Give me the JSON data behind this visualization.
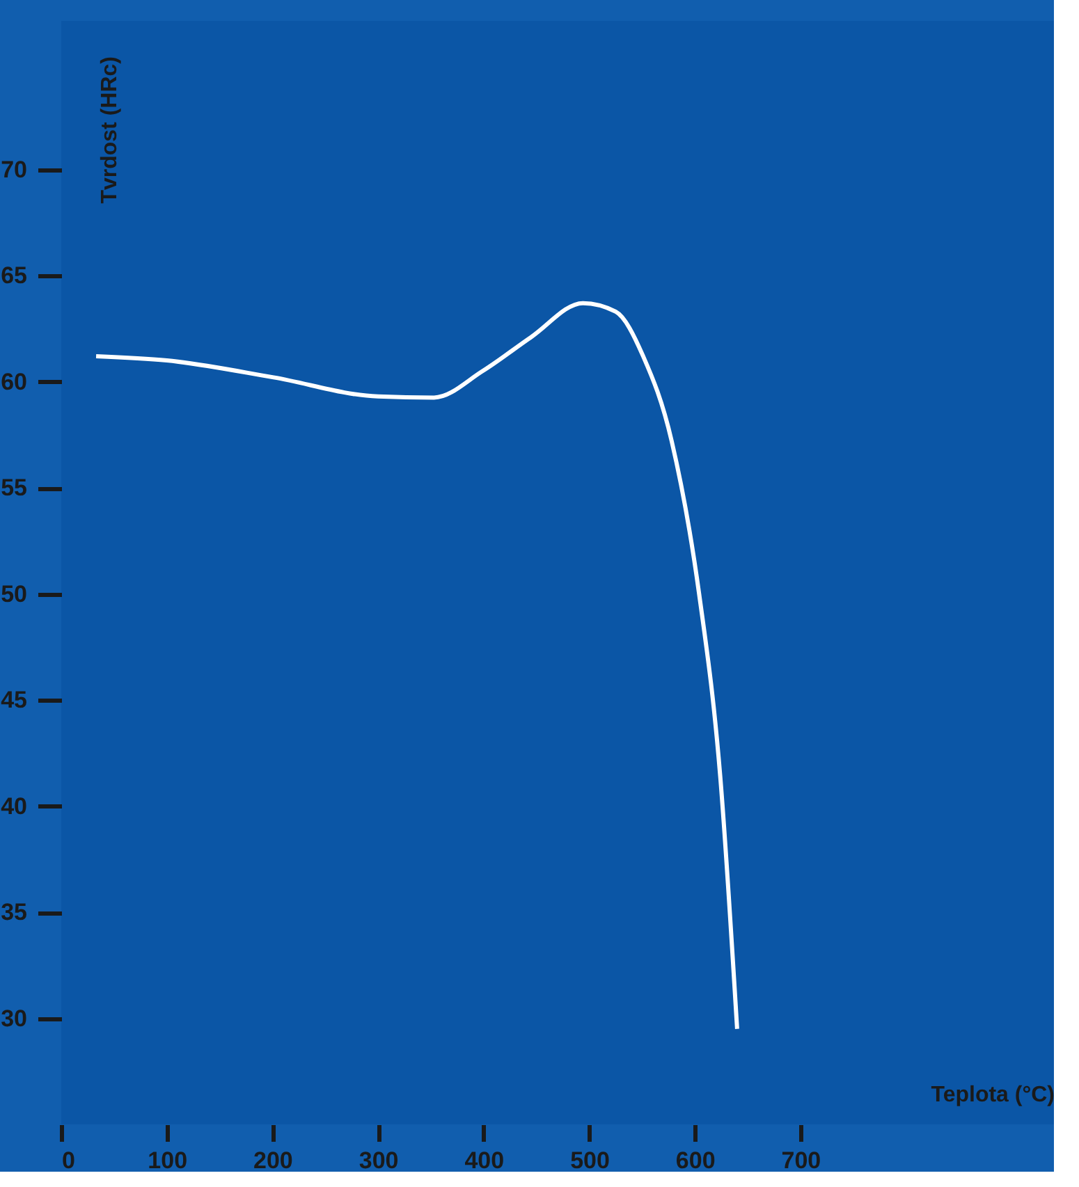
{
  "chart_data": {
    "type": "line",
    "xlabel": "Teplota (°C)",
    "ylabel": "Tvrdost (HRc)",
    "x": [
      33,
      100,
      201,
      300,
      353,
      399,
      445,
      494,
      525,
      551,
      578,
      604,
      624,
      640
    ],
    "series": [
      {
        "color": "#ffffff",
        "values": [
          61.2,
          61.0,
          60.2,
          59.3,
          59.25,
          60.5,
          62.1,
          63.7,
          63.3,
          61.2,
          57.2,
          50.0,
          41.4,
          29.5
        ]
      }
    ],
    "xlim": [
      0,
      940
    ],
    "ylim": [
      25,
      77
    ],
    "xticks": [
      {
        "value": 0,
        "label": "0"
      },
      100,
      200,
      300,
      400,
      500,
      600,
      700
    ],
    "yticks": [
      30,
      35,
      40,
      45,
      50,
      55,
      60,
      65,
      70
    ],
    "grid": false,
    "marker": "none",
    "line_style": "solid"
  }
}
